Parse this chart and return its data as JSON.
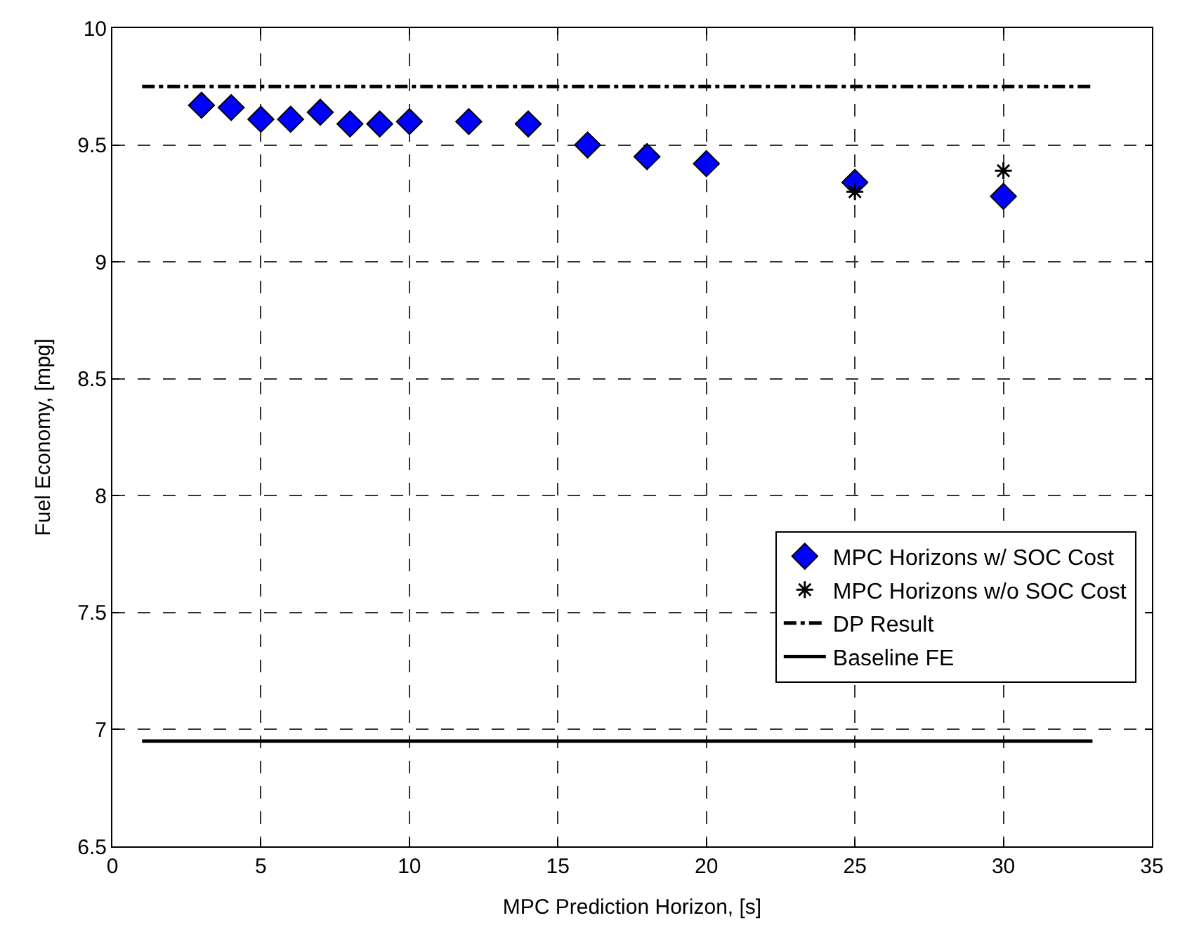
{
  "chart_data": {
    "type": "scatter",
    "xlabel": "MPC Prediction Horizon, [s]",
    "ylabel": "Fuel Economy, [mpg]",
    "xlim": [
      0,
      35
    ],
    "xticks": [
      0,
      5,
      10,
      15,
      20,
      25,
      30,
      35
    ],
    "ylim": [
      6.5,
      10
    ],
    "yticks": [
      6.5,
      7,
      7.5,
      8,
      8.5,
      9,
      9.5,
      10
    ],
    "grid": true,
    "legend": "bottom right",
    "series": [
      {
        "name": "MPC Horizons w/ SOC Cost",
        "marker": "diamond",
        "color": "#0000ff",
        "x": [
          3,
          4,
          5,
          6,
          7,
          8,
          9,
          10,
          12,
          14,
          16,
          18,
          20,
          25,
          30
        ],
        "values": [
          9.67,
          9.66,
          9.61,
          9.61,
          9.64,
          9.59,
          9.59,
          9.6,
          9.6,
          9.59,
          9.5,
          9.45,
          9.42,
          9.34,
          9.28
        ]
      },
      {
        "name": "MPC Horizons w/o SOC Cost",
        "marker": "cross",
        "color": "#000000",
        "x": [
          25,
          30
        ],
        "values": [
          9.3,
          9.39
        ]
      },
      {
        "name": "DP Result",
        "type": "line",
        "line_style": "dashdot",
        "color": "#000000",
        "x": [
          1,
          33
        ],
        "values": [
          9.75,
          9.75
        ]
      },
      {
        "name": "Baseline FE",
        "type": "line",
        "line_style": "solid",
        "color": "#000000",
        "x": [
          1,
          33
        ],
        "values": [
          6.95,
          6.95
        ]
      }
    ]
  }
}
